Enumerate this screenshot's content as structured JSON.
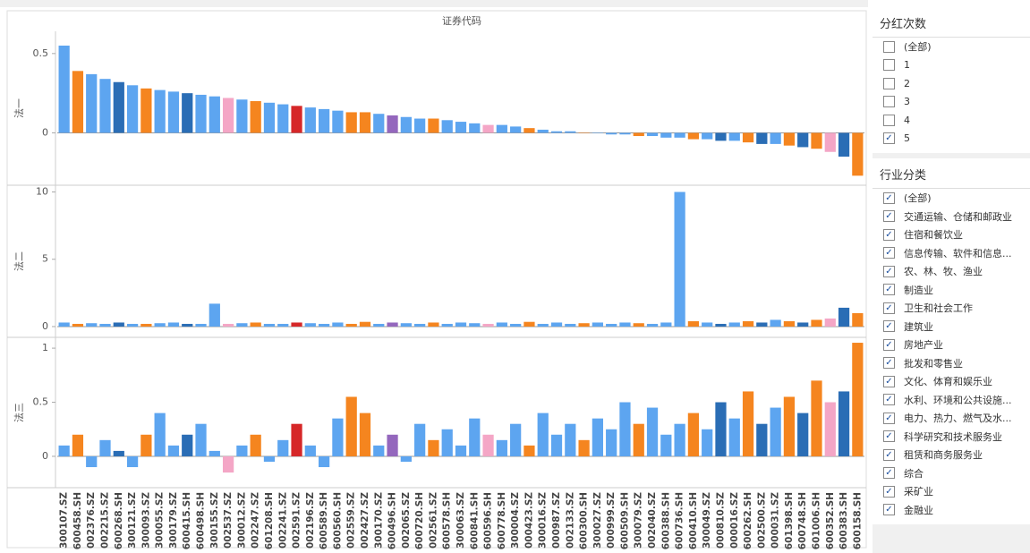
{
  "chart_data": {
    "type": "bar",
    "header": "证券代码",
    "categories": [
      "300107.SZ",
      "600458.SH",
      "002376.SZ",
      "002215.SZ",
      "600268.SH",
      "300121.SZ",
      "300093.SZ",
      "300055.SZ",
      "300179.SZ",
      "600415.SH",
      "600498.SH",
      "300155.SZ",
      "002537.SZ",
      "300012.SZ",
      "002247.SZ",
      "601208.SH",
      "002241.SZ",
      "002591.SZ",
      "002196.SZ",
      "600589.SH",
      "600560.SH",
      "002559.SZ",
      "002427.SZ",
      "300170.SZ",
      "600496.SH",
      "002065.SZ",
      "600720.SH",
      "002561.SZ",
      "600578.SH",
      "300063.SZ",
      "600841.SH",
      "600596.SH",
      "600778.SH",
      "300004.SZ",
      "000423.SZ",
      "300016.SZ",
      "000987.SZ",
      "002133.SZ",
      "600300.SH",
      "300027.SZ",
      "000999.SZ",
      "600509.SH",
      "300079.SZ",
      "002040.SZ",
      "600388.SH",
      "600736.SH",
      "600410.SH",
      "300049.SZ",
      "000810.SZ",
      "000016.SZ",
      "600262.SH",
      "002500.SZ",
      "000031.SZ",
      "601398.SH",
      "600748.SH",
      "601006.SH",
      "600352.SH",
      "600383.SH",
      "600158.SH"
    ],
    "colors": [
      "#5da5f0",
      "#f5851f",
      "#5da5f0",
      "#5da5f0",
      "#2a6db5",
      "#5da5f0",
      "#f5851f",
      "#5da5f0",
      "#5da5f0",
      "#2a6db5",
      "#5da5f0",
      "#5da5f0",
      "#f4a6c6",
      "#5da5f0",
      "#f5851f",
      "#5da5f0",
      "#5da5f0",
      "#d62728",
      "#5da5f0",
      "#5da5f0",
      "#5da5f0",
      "#f5851f",
      "#f5851f",
      "#5da5f0",
      "#9467bd",
      "#5da5f0",
      "#5da5f0",
      "#f5851f",
      "#5da5f0",
      "#5da5f0",
      "#5da5f0",
      "#f4a6c6",
      "#5da5f0",
      "#5da5f0",
      "#f5851f",
      "#5da5f0",
      "#5da5f0",
      "#5da5f0",
      "#f5851f",
      "#5da5f0",
      "#5da5f0",
      "#5da5f0",
      "#f5851f",
      "#5da5f0",
      "#5da5f0",
      "#5da5f0",
      "#f5851f",
      "#5da5f0",
      "#2a6db5",
      "#5da5f0",
      "#f5851f",
      "#2a6db5",
      "#5da5f0",
      "#f5851f",
      "#2a6db5",
      "#f5851f",
      "#f4a6c6",
      "#2a6db5",
      "#f5851f"
    ],
    "panels": [
      {
        "label": "法一",
        "ylim": [
          -0.33,
          0.64
        ],
        "yticks": [
          0.0,
          0.5
        ],
        "values": [
          0.55,
          0.39,
          0.37,
          0.34,
          0.32,
          0.3,
          0.28,
          0.27,
          0.26,
          0.25,
          0.24,
          0.23,
          0.22,
          0.21,
          0.2,
          0.19,
          0.18,
          0.17,
          0.16,
          0.15,
          0.14,
          0.13,
          0.13,
          0.12,
          0.11,
          0.1,
          0.09,
          0.09,
          0.08,
          0.07,
          0.06,
          0.05,
          0.05,
          0.04,
          0.03,
          0.02,
          0.01,
          0.01,
          0.0,
          0,
          -0.01,
          -0.01,
          -0.02,
          -0.02,
          -0.03,
          -0.03,
          -0.04,
          -0.04,
          -0.05,
          -0.05,
          -0.06,
          -0.07,
          -0.07,
          -0.08,
          -0.09,
          -0.1,
          -0.12,
          -0.15,
          -0.27
        ]
      },
      {
        "label": "法二",
        "ylim": [
          -0.8,
          10.5
        ],
        "yticks": [
          0,
          5,
          10
        ],
        "values": [
          0.3,
          0.2,
          0.25,
          0.2,
          0.3,
          0.2,
          0.2,
          0.25,
          0.3,
          0.2,
          0.2,
          1.7,
          0.2,
          0.25,
          0.3,
          0.2,
          0.2,
          0.3,
          0.25,
          0.2,
          0.3,
          0.2,
          0.35,
          0.2,
          0.3,
          0.25,
          0.2,
          0.3,
          0.2,
          0.3,
          0.25,
          0.2,
          0.3,
          0.2,
          0.35,
          0.2,
          0.3,
          0.2,
          0.25,
          0.3,
          0.2,
          0.3,
          0.25,
          0.2,
          0.3,
          10,
          0.4,
          0.3,
          0.2,
          0.3,
          0.4,
          0.3,
          0.5,
          0.4,
          0.3,
          0.5,
          0.6,
          1.4,
          1.0
        ]
      },
      {
        "label": "法三",
        "ylim": [
          -0.29,
          1.1
        ],
        "yticks": [
          0.0,
          0.5,
          1.0
        ],
        "values": [
          0.1,
          0.2,
          -0.1,
          0.15,
          0.05,
          -0.1,
          0.2,
          0.4,
          0.1,
          0.2,
          0.3,
          0.05,
          -0.15,
          0.1,
          0.2,
          -0.05,
          0.15,
          0.3,
          0.1,
          -0.1,
          0.35,
          0.55,
          0.4,
          0.1,
          0.2,
          -0.05,
          0.3,
          0.15,
          0.25,
          0.1,
          0.35,
          0.2,
          0.15,
          0.3,
          0.1,
          0.4,
          0.2,
          0.3,
          0.15,
          0.35,
          0.25,
          0.5,
          0.3,
          0.45,
          0.2,
          0.3,
          0.4,
          0.25,
          0.5,
          0.35,
          0.6,
          0.3,
          0.45,
          0.55,
          0.4,
          0.7,
          0.5,
          0.6,
          1.05
        ]
      }
    ]
  },
  "filters": [
    {
      "title": "分红次数",
      "items": [
        {
          "label": "(全部)",
          "checked": false
        },
        {
          "label": "1",
          "checked": false
        },
        {
          "label": "2",
          "checked": false
        },
        {
          "label": "3",
          "checked": false
        },
        {
          "label": "4",
          "checked": false
        },
        {
          "label": "5",
          "checked": true
        }
      ]
    },
    {
      "title": "行业分类",
      "items": [
        {
          "label": "(全部)",
          "checked": true
        },
        {
          "label": "交通运输、仓储和邮政业",
          "checked": true
        },
        {
          "label": "住宿和餐饮业",
          "checked": true
        },
        {
          "label": "信息传输、软件和信息...",
          "checked": true
        },
        {
          "label": "农、林、牧、渔业",
          "checked": true
        },
        {
          "label": "制造业",
          "checked": true
        },
        {
          "label": "卫生和社会工作",
          "checked": true
        },
        {
          "label": "建筑业",
          "checked": true
        },
        {
          "label": "房地产业",
          "checked": true
        },
        {
          "label": "批发和零售业",
          "checked": true
        },
        {
          "label": "文化、体育和娱乐业",
          "checked": true
        },
        {
          "label": "水利、环境和公共设施...",
          "checked": true
        },
        {
          "label": "电力、热力、燃气及水...",
          "checked": true
        },
        {
          "label": "科学研究和技术服务业",
          "checked": true
        },
        {
          "label": "租赁和商务服务业",
          "checked": true
        },
        {
          "label": "综合",
          "checked": true
        },
        {
          "label": "采矿业",
          "checked": true
        },
        {
          "label": "金融业",
          "checked": true
        }
      ]
    }
  ]
}
